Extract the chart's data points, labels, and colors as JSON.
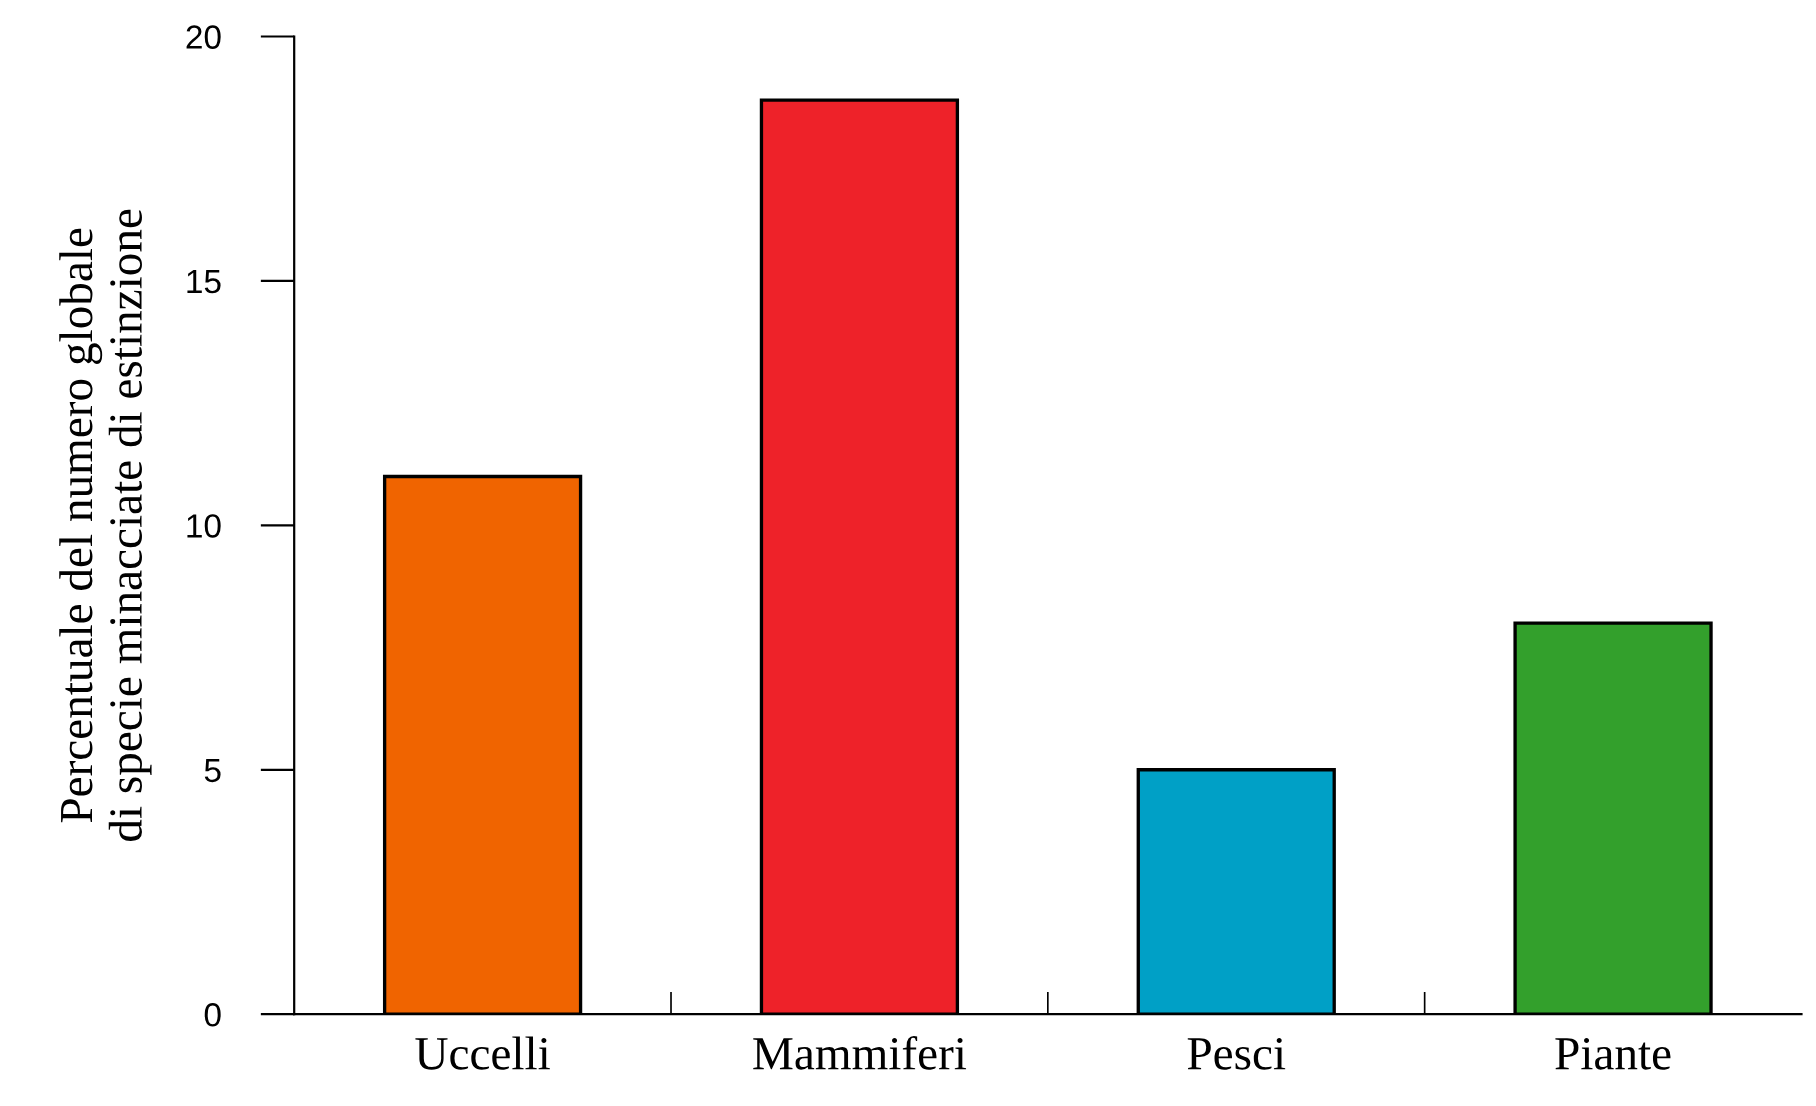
{
  "chart_data": {
    "type": "bar",
    "ylabel": "Percentuale del numero globale\ndi specie minacciate di estinzione",
    "categories": [
      "Uccelli",
      "Mammiferi",
      "Pesci",
      "Piante"
    ],
    "values": [
      11,
      18.7,
      5,
      8
    ],
    "colors": [
      "#f06400",
      "#ee2229",
      "#00a0c6",
      "#33a02c"
    ],
    "ylim": [
      0,
      20
    ],
    "yticks": [
      0,
      5,
      10,
      15,
      20
    ],
    "grid": false
  }
}
